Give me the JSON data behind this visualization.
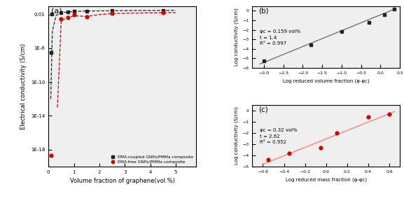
{
  "panel_a": {
    "black_x": [
      0.09,
      0.12,
      0.5,
      0.75,
      1.0,
      1.5,
      2.5,
      4.5
    ],
    "black_y": [
      3e-07,
      0.012,
      0.018,
      0.022,
      0.025,
      0.026,
      0.028,
      0.03
    ],
    "red_x": [
      0.09,
      0.5,
      0.75,
      1.0,
      1.5,
      2.5,
      4.5
    ],
    "red_y": [
      2e-19,
      0.003,
      0.0045,
      0.009,
      0.005,
      0.013,
      0.016
    ],
    "black_fit_x": [
      0.09,
      0.15,
      0.3,
      0.5,
      0.75,
      1.0,
      1.5,
      2.0,
      2.5,
      3.0,
      3.5,
      4.0,
      4.5,
      5.0
    ],
    "black_fit_y": [
      1e-12,
      0.0001,
      0.008,
      0.016,
      0.02,
      0.023,
      0.026,
      0.027,
      0.028,
      0.029,
      0.03,
      0.03,
      0.031,
      0.031
    ],
    "red_fit_x": [
      0.35,
      0.5,
      0.75,
      1.0,
      1.5,
      2.0,
      2.5,
      3.0,
      3.5,
      4.0,
      4.5,
      5.0
    ],
    "red_fit_y": [
      1e-13,
      0.002,
      0.004,
      0.007,
      0.006,
      0.01,
      0.013,
      0.014,
      0.015,
      0.016,
      0.016,
      0.017
    ],
    "xlabel": "Volume fraction of graphene(vol.%)",
    "ylabel": "Electrical conductivity (S/cm)",
    "legend_black": "EMA-coupled GNPs/PMMa composite",
    "legend_red": "EMA-free GNPs/PMMa composite"
  },
  "panel_b": {
    "x": [
      -3.0,
      -1.8,
      -1.0,
      -0.3,
      0.1,
      0.35
    ],
    "y": [
      -5.3,
      -3.6,
      -2.2,
      -1.2,
      -0.4,
      0.15
    ],
    "fit_x": [
      -3.1,
      0.4
    ],
    "fit_y": [
      -5.6,
      0.25
    ],
    "xlabel": "Log reduced volume fraction (φ-φc)",
    "ylabel": "Log conductivity (S/cm)",
    "ann_line1": "φc = 0.159 vol%",
    "ann_line2": "t = 1.4",
    "ann_line3": "R² = 0.997",
    "xlim": [
      -3.3,
      0.5
    ],
    "ylim": [
      -6.0,
      0.5
    ]
  },
  "panel_c": {
    "x": [
      -0.55,
      -0.35,
      -0.05,
      0.1,
      0.4,
      0.6
    ],
    "y": [
      -4.4,
      -3.8,
      -3.3,
      -2.0,
      -0.6,
      -0.3
    ],
    "fit_x": [
      -0.6,
      0.65
    ],
    "fit_y": [
      -4.8,
      -0.1
    ],
    "xlabel": "Log reduced mass fraction (φ-φc)",
    "ylabel": "Log conductivity (S/cm)",
    "ann_line1": "φc = 0.32 vol%",
    "ann_line2": "t = 2.62",
    "ann_line3": "R² = 0.952",
    "xlim": [
      -0.7,
      0.7
    ],
    "ylim": [
      -5.0,
      0.5
    ]
  },
  "black_color": "#222222",
  "red_color": "#cc0000",
  "fit_black_color": "#666666",
  "fit_red_color": "#ff7777",
  "background": "#efefef"
}
